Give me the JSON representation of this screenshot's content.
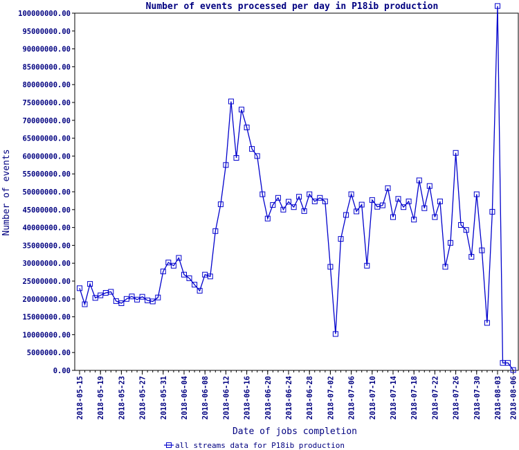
{
  "chart_data": {
    "type": "line",
    "title": "Number of events processed per day in P18ib production",
    "xlabel": "Date of jobs completion",
    "ylabel": "Number of events",
    "ylim": [
      0,
      100000000
    ],
    "y_tick_step": 5000000,
    "y_tick_labels": [
      "0.00",
      "5000000.00",
      "10000000.00",
      "15000000.00",
      "20000000.00",
      "25000000.00",
      "30000000.00",
      "35000000.00",
      "40000000.00",
      "45000000.00",
      "50000000.00",
      "55000000.00",
      "60000000.00",
      "65000000.00",
      "70000000.00",
      "75000000.00",
      "80000000.00",
      "85000000.00",
      "90000000.00",
      "95000000.00",
      "100000000.00"
    ],
    "x_tick_labels": [
      "2018-05-15",
      "2018-05-19",
      "2018-05-23",
      "2018-05-27",
      "2018-05-31",
      "2018-06-04",
      "2018-06-08",
      "2018-06-12",
      "2018-06-16",
      "2018-06-20",
      "2018-06-24",
      "2018-06-28",
      "2018-07-02",
      "2018-07-06",
      "2018-07-10",
      "2018-07-14",
      "2018-07-18",
      "2018-07-22",
      "2018-07-26",
      "2018-07-30",
      "2018-08-03",
      "2018-08-06"
    ],
    "x_tick_days": [
      0,
      4,
      8,
      12,
      16,
      20,
      24,
      28,
      32,
      36,
      40,
      44,
      48,
      52,
      56,
      60,
      64,
      68,
      72,
      76,
      80,
      83
    ],
    "grid": false,
    "legend_position": "bottom",
    "series": [
      {
        "name": "all streams data for P18ib production",
        "color": "#0000cc",
        "marker": "open-square",
        "x": [
          "2018-05-15",
          "2018-05-16",
          "2018-05-17",
          "2018-05-18",
          "2018-05-19",
          "2018-05-20",
          "2018-05-21",
          "2018-05-22",
          "2018-05-23",
          "2018-05-24",
          "2018-05-25",
          "2018-05-26",
          "2018-05-27",
          "2018-05-28",
          "2018-05-29",
          "2018-05-30",
          "2018-05-31",
          "2018-06-01",
          "2018-06-02",
          "2018-06-03",
          "2018-06-04",
          "2018-06-05",
          "2018-06-06",
          "2018-06-07",
          "2018-06-08",
          "2018-06-09",
          "2018-06-10",
          "2018-06-11",
          "2018-06-12",
          "2018-06-13",
          "2018-06-14",
          "2018-06-15",
          "2018-06-16",
          "2018-06-17",
          "2018-06-18",
          "2018-06-19",
          "2018-06-20",
          "2018-06-21",
          "2018-06-22",
          "2018-06-23",
          "2018-06-24",
          "2018-06-25",
          "2018-06-26",
          "2018-06-27",
          "2018-06-28",
          "2018-06-29",
          "2018-06-30",
          "2018-07-01",
          "2018-07-02",
          "2018-07-03",
          "2018-07-04",
          "2018-07-05",
          "2018-07-06",
          "2018-07-07",
          "2018-07-08",
          "2018-07-09",
          "2018-07-10",
          "2018-07-11",
          "2018-07-12",
          "2018-07-13",
          "2018-07-14",
          "2018-07-15",
          "2018-07-16",
          "2018-07-17",
          "2018-07-18",
          "2018-07-19",
          "2018-07-20",
          "2018-07-21",
          "2018-07-22",
          "2018-07-23",
          "2018-07-24",
          "2018-07-25",
          "2018-07-26",
          "2018-07-27",
          "2018-07-28",
          "2018-07-29",
          "2018-07-30",
          "2018-07-31",
          "2018-08-01",
          "2018-08-02",
          "2018-08-03",
          "2018-08-04",
          "2018-08-05",
          "2018-08-06"
        ],
        "y": [
          23000000,
          18500000,
          24200000,
          20300000,
          21000000,
          21700000,
          22000000,
          19400000,
          18800000,
          20000000,
          20700000,
          19800000,
          20600000,
          19600000,
          19300000,
          20400000,
          27700000,
          30200000,
          29300000,
          31500000,
          26800000,
          25800000,
          24000000,
          22300000,
          26800000,
          26300000,
          39000000,
          46500000,
          57500000,
          75300000,
          59500000,
          73000000,
          68000000,
          62000000,
          60000000,
          49300000,
          42500000,
          46300000,
          48300000,
          45000000,
          47200000,
          45700000,
          48600000,
          44600000,
          49300000,
          47300000,
          48300000,
          47300000,
          29000000,
          10200000,
          36800000,
          43500000,
          49300000,
          44500000,
          46400000,
          29300000,
          47700000,
          45800000,
          46200000,
          51000000,
          42900000,
          48000000,
          45700000,
          47300000,
          42200000,
          53200000,
          45400000,
          51600000,
          42900000,
          47300000,
          29000000,
          35700000,
          60900000,
          40700000,
          39300000,
          31800000,
          49300000,
          33600000,
          13300000,
          44400000,
          102000000,
          2100000,
          2100000,
          100000
        ]
      }
    ]
  }
}
